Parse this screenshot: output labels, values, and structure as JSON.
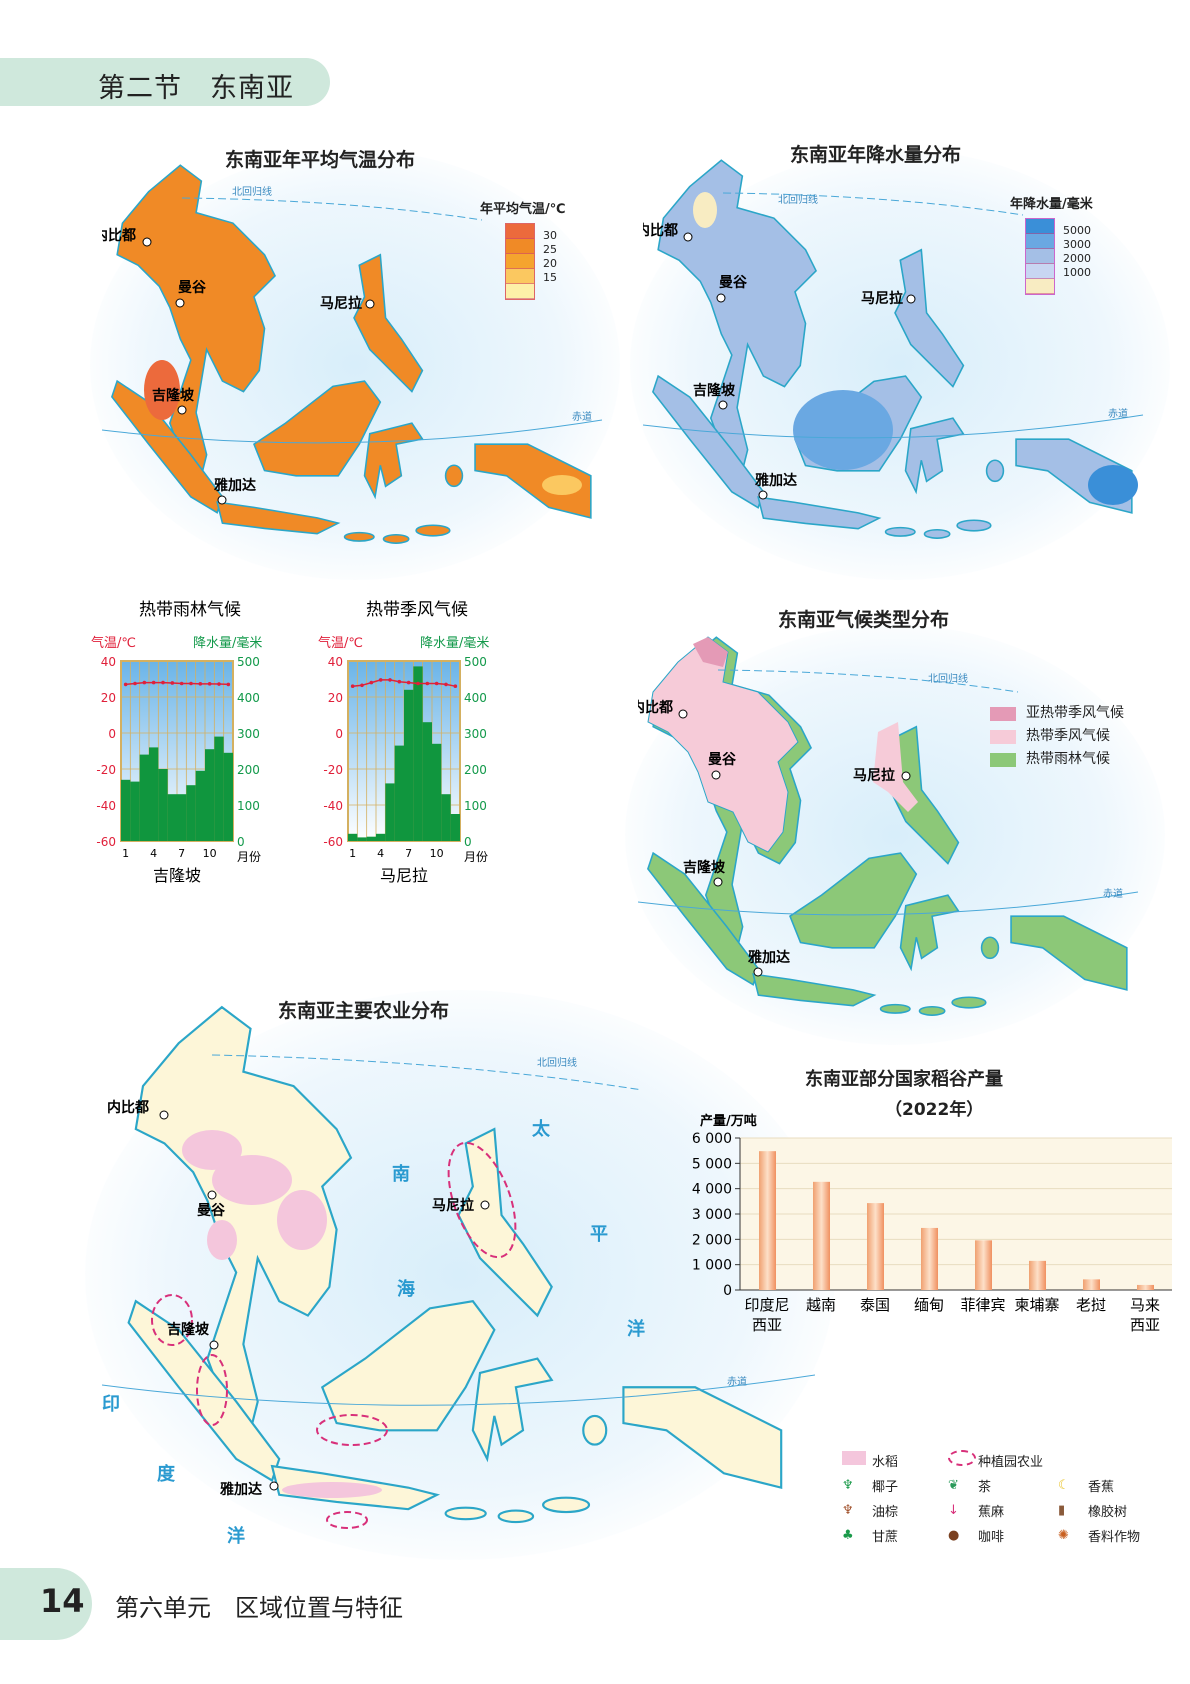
{
  "header": {
    "section": "第二节　东南亚"
  },
  "footer": {
    "page": "14",
    "unit": "第六单元　区域位置与特征"
  },
  "labels": {
    "tropic": "北回归线",
    "equator": "赤道",
    "naypyidaw": "内比都",
    "bangkok": "曼谷",
    "manila": "马尼拉",
    "kl": "吉隆坡",
    "jakarta": "雅加达"
  },
  "map_temp": {
    "title": "东南亚年平均气温分布",
    "legend_title": "年平均气温/℃",
    "legend": [
      "30",
      "25",
      "20",
      "15"
    ],
    "colors": [
      "#ec6a3c",
      "#f08a26",
      "#f5a42e",
      "#fbc860",
      "#fdf0a8"
    ]
  },
  "map_rain": {
    "title": "东南亚年降水量分布",
    "legend_title": "年降水量/毫米",
    "legend": [
      "5000",
      "3000",
      "2000",
      "1000"
    ],
    "colors": [
      "#3a8fd8",
      "#6aa8e2",
      "#a4bfe6",
      "#c8d6f2",
      "#f8ecc2"
    ]
  },
  "map_climate": {
    "title": "东南亚气候类型分布",
    "legend": [
      {
        "label": "亚热带季风气候",
        "color": "#e49ab6"
      },
      {
        "label": "热带季风气候",
        "color": "#f6cbd8"
      },
      {
        "label": "热带雨林气候",
        "color": "#8cc878"
      }
    ]
  },
  "map_agri": {
    "title": "东南亚主要农业分布",
    "seas": {
      "south": "南",
      "sea": "海",
      "tai": "太",
      "ping": "平",
      "yang": "洋",
      "yin": "印",
      "du": "度",
      "yang2": "洋"
    },
    "legend": [
      {
        "label": "水稻",
        "icon": "rice-area"
      },
      {
        "label": "种植园农业",
        "icon": "plantation-dashed-ellipse"
      },
      {
        "label": "椰子",
        "icon": "coconut-icon"
      },
      {
        "label": "茶",
        "icon": "tea-leaf-icon"
      },
      {
        "label": "香蕉",
        "icon": "banana-icon"
      },
      {
        "label": "油棕",
        "icon": "oil-palm-icon"
      },
      {
        "label": "蕉麻",
        "icon": "abaca-arrow-icon"
      },
      {
        "label": "橡胶树",
        "icon": "rubber-tree-icon"
      },
      {
        "label": "甘蔗",
        "icon": "sugarcane-icon"
      },
      {
        "label": "咖啡",
        "icon": "coffee-bean-icon"
      },
      {
        "label": "香料作物",
        "icon": "spice-icon"
      }
    ]
  },
  "chart_data": [
    {
      "type": "bar+line",
      "title": "热带雨林气候",
      "caption": "吉隆坡",
      "ylabel_left": "气温/℃",
      "ylabel_right": "降水量/毫米",
      "xlabel": "月份",
      "x_ticks": [
        "1",
        "4",
        "7",
        "10"
      ],
      "left_ticks": [
        "40",
        "20",
        "0",
        "-20",
        "-40",
        "-60"
      ],
      "right_ticks": [
        "500",
        "400",
        "300",
        "200",
        "100",
        "0"
      ],
      "ylim_left": [
        -60,
        40
      ],
      "ylim_right": [
        0,
        500
      ],
      "precipitation": [
        170,
        165,
        240,
        260,
        200,
        130,
        130,
        155,
        195,
        255,
        290,
        245
      ],
      "temperature": [
        27,
        27.5,
        28,
        28,
        28,
        27.8,
        27.5,
        27.5,
        27.3,
        27.3,
        27.2,
        27
      ]
    },
    {
      "type": "bar+line",
      "title": "热带季风气候",
      "caption": "马尼拉",
      "ylabel_left": "气温/℃",
      "ylabel_right": "降水量/毫米",
      "xlabel": "月份",
      "x_ticks": [
        "1",
        "4",
        "7",
        "10"
      ],
      "left_ticks": [
        "40",
        "20",
        "0",
        "-20",
        "-40",
        "-60"
      ],
      "right_ticks": [
        "500",
        "400",
        "300",
        "200",
        "100",
        "0"
      ],
      "ylim_left": [
        -60,
        40
      ],
      "ylim_right": [
        0,
        500
      ],
      "precipitation": [
        20,
        10,
        12,
        20,
        160,
        265,
        420,
        485,
        330,
        270,
        130,
        75
      ],
      "temperature": [
        26,
        26.5,
        28,
        29.5,
        29.5,
        28.5,
        28,
        27.5,
        27.5,
        27.5,
        27,
        26
      ]
    },
    {
      "type": "bar",
      "title": "东南亚部分国家稻谷产量",
      "subtitle": "（2022年）",
      "ylabel": "产量/万吨",
      "ylim": [
        0,
        6000
      ],
      "y_ticks": [
        "0",
        "1 000",
        "2 000",
        "3 000",
        "4 000",
        "5 000",
        "6 000"
      ],
      "categories": [
        "印度尼西亚",
        "越南",
        "泰国",
        "缅甸",
        "菲律宾",
        "柬埔寨",
        "老挝",
        "马来西亚"
      ],
      "category_lines": [
        [
          "印度尼",
          "西亚"
        ],
        [
          "越南"
        ],
        [
          "泰国"
        ],
        [
          "缅甸"
        ],
        [
          "菲律宾"
        ],
        [
          "柬埔寨"
        ],
        [
          "老挝"
        ],
        [
          "马来",
          "西亚"
        ]
      ],
      "values": [
        5480,
        4270,
        3430,
        2450,
        1960,
        1150,
        420,
        200
      ]
    }
  ]
}
